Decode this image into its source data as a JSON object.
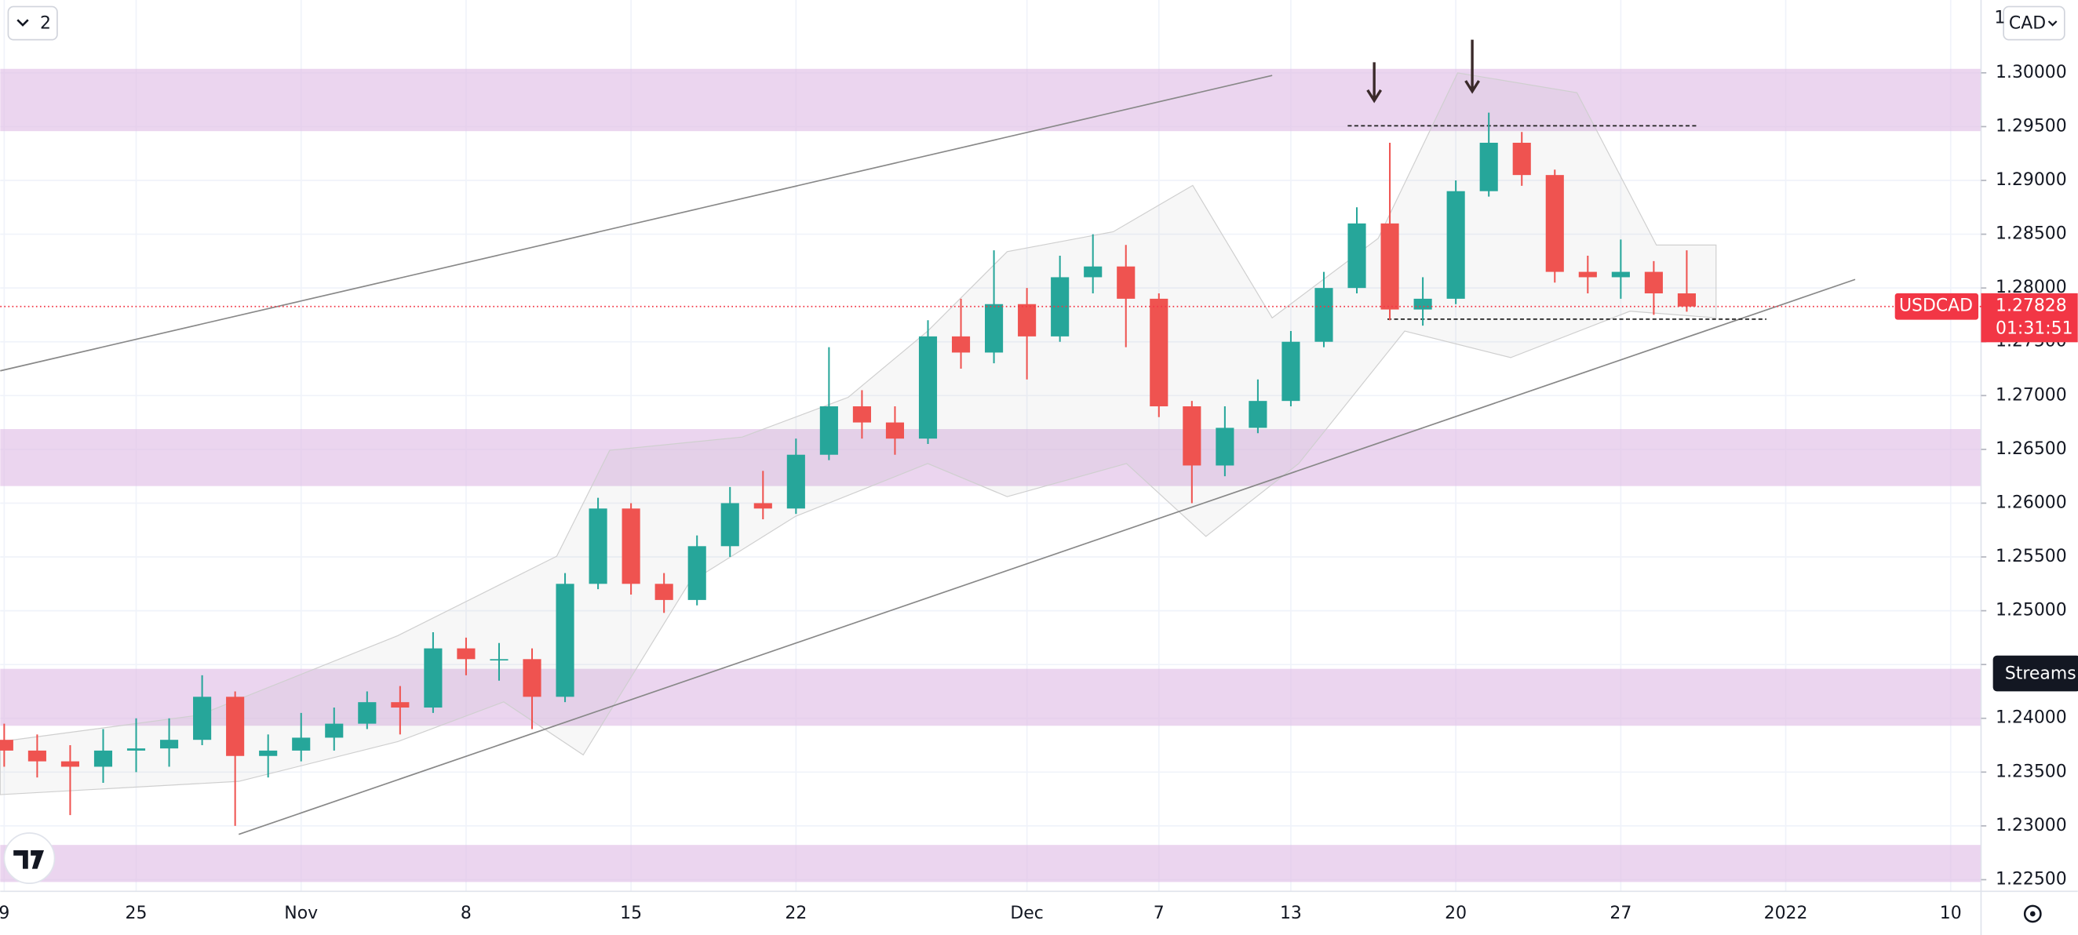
{
  "chart_data": {
    "type": "candlestick",
    "symbol": "USDCAD",
    "countdown": "01:31:51",
    "up_color": "#26a69a",
    "down_color": "#ef5350",
    "grid": true,
    "x": [
      0,
      1,
      2,
      3,
      4,
      5,
      6,
      7,
      8,
      9,
      10,
      11,
      12,
      13,
      14,
      15,
      16,
      17,
      18,
      19,
      20,
      21,
      22,
      23,
      24,
      25,
      26,
      27,
      28,
      29,
      30,
      31,
      32,
      33,
      34,
      35,
      36,
      37,
      38,
      39,
      40,
      41,
      42,
      43,
      44,
      45,
      46,
      47,
      48,
      49,
      50,
      51
    ],
    "open": [
      1.238,
      1.237,
      1.236,
      1.2355,
      1.237,
      1.2372,
      1.238,
      1.242,
      1.2365,
      1.237,
      1.2382,
      1.2395,
      1.2415,
      1.241,
      1.2465,
      1.2455,
      1.2455,
      1.242,
      1.2525,
      1.2595,
      1.2525,
      1.251,
      1.256,
      1.26,
      1.2595,
      1.2645,
      1.269,
      1.2675,
      1.266,
      1.2755,
      1.274,
      1.2785,
      1.2755,
      1.281,
      1.282,
      1.279,
      1.269,
      1.2635,
      1.267,
      1.2695,
      1.275,
      1.28,
      1.286,
      1.278,
      1.279,
      1.289,
      1.2935,
      1.2905,
      1.2815,
      1.281,
      1.2815,
      1.2795
    ],
    "high": [
      1.2395,
      1.2385,
      1.2375,
      1.239,
      1.24,
      1.24,
      1.244,
      1.2425,
      1.2385,
      1.2405,
      1.241,
      1.2425,
      1.243,
      1.248,
      1.2475,
      1.247,
      1.2465,
      1.2535,
      1.2605,
      1.26,
      1.2535,
      1.257,
      1.2615,
      1.263,
      1.266,
      1.2745,
      1.2705,
      1.269,
      1.277,
      1.279,
      1.2835,
      1.28,
      1.283,
      1.285,
      1.284,
      1.2795,
      1.2695,
      1.269,
      1.2715,
      1.276,
      1.2815,
      1.2875,
      1.2935,
      1.281,
      1.29,
      1.2963,
      1.2945,
      1.291,
      1.283,
      1.2845,
      1.2825,
      1.2835
    ],
    "low": [
      1.2355,
      1.2345,
      1.231,
      1.234,
      1.235,
      1.2355,
      1.2375,
      1.23,
      1.2345,
      1.236,
      1.237,
      1.239,
      1.2385,
      1.2405,
      1.244,
      1.2435,
      1.239,
      1.2415,
      1.252,
      1.2515,
      1.2498,
      1.2505,
      1.255,
      1.2585,
      1.259,
      1.264,
      1.266,
      1.2645,
      1.2655,
      1.2725,
      1.273,
      1.2715,
      1.275,
      1.2795,
      1.2745,
      1.268,
      1.26,
      1.2625,
      1.2665,
      1.269,
      1.2745,
      1.2795,
      1.277,
      1.2765,
      1.2785,
      1.2885,
      1.2895,
      1.2805,
      1.2795,
      1.279,
      1.2775,
      1.2778
    ],
    "close": [
      1.237,
      1.236,
      1.2355,
      1.237,
      1.2372,
      1.238,
      1.242,
      1.2365,
      1.237,
      1.2382,
      1.2395,
      1.2415,
      1.241,
      1.2465,
      1.2455,
      1.2455,
      1.242,
      1.2525,
      1.2595,
      1.2525,
      1.251,
      1.256,
      1.26,
      1.2595,
      1.2645,
      1.269,
      1.2675,
      1.266,
      1.2755,
      1.274,
      1.2785,
      1.2755,
      1.281,
      1.282,
      1.279,
      1.269,
      1.2635,
      1.267,
      1.2695,
      1.275,
      1.28,
      1.286,
      1.278,
      1.279,
      1.289,
      1.2935,
      1.2905,
      1.2815,
      1.281,
      1.2815,
      1.2795,
      1.27828
    ],
    "xlim": [
      -0.12,
      59.92
    ],
    "xticks": [
      {
        "value": 0,
        "label": "9"
      },
      {
        "value": 4,
        "label": "25"
      },
      {
        "value": 9,
        "label": "Nov"
      },
      {
        "value": 14,
        "label": "8"
      },
      {
        "value": 19,
        "label": "15"
      },
      {
        "value": 24,
        "label": "22"
      },
      {
        "value": 31,
        "label": "Dec"
      },
      {
        "value": 35,
        "label": "7"
      },
      {
        "value": 39,
        "label": "13"
      },
      {
        "value": 44,
        "label": "20"
      },
      {
        "value": 49,
        "label": "27"
      },
      {
        "value": 54,
        "label": "2022"
      },
      {
        "value": 59,
        "label": "10"
      }
    ],
    "ylim": [
      1.22392,
      1.30677
    ],
    "yticks": [
      {
        "value": 1.225,
        "label": "1.22500"
      },
      {
        "value": 1.23,
        "label": "1.23000"
      },
      {
        "value": 1.235,
        "label": "1.23500"
      },
      {
        "value": 1.24,
        "label": "1.24000"
      },
      {
        "value": 1.245,
        "label": "1.24500"
      },
      {
        "value": 1.25,
        "label": "1.25000"
      },
      {
        "value": 1.255,
        "label": "1.25500"
      },
      {
        "value": 1.26,
        "label": "1.26000"
      },
      {
        "value": 1.265,
        "label": "1.26500"
      },
      {
        "value": 1.27,
        "label": "1.27000"
      },
      {
        "value": 1.275,
        "label": "1.27500"
      },
      {
        "value": 1.28,
        "label": "1.28000"
      },
      {
        "value": 1.285,
        "label": "1.28500"
      },
      {
        "value": 1.29,
        "label": "1.29000"
      },
      {
        "value": 1.295,
        "label": "1.29500"
      },
      {
        "value": 1.3,
        "label": "1.30000"
      }
    ]
  },
  "ui": {
    "interval": "2",
    "currency": "CAD",
    "tooltip": "Streams"
  }
}
